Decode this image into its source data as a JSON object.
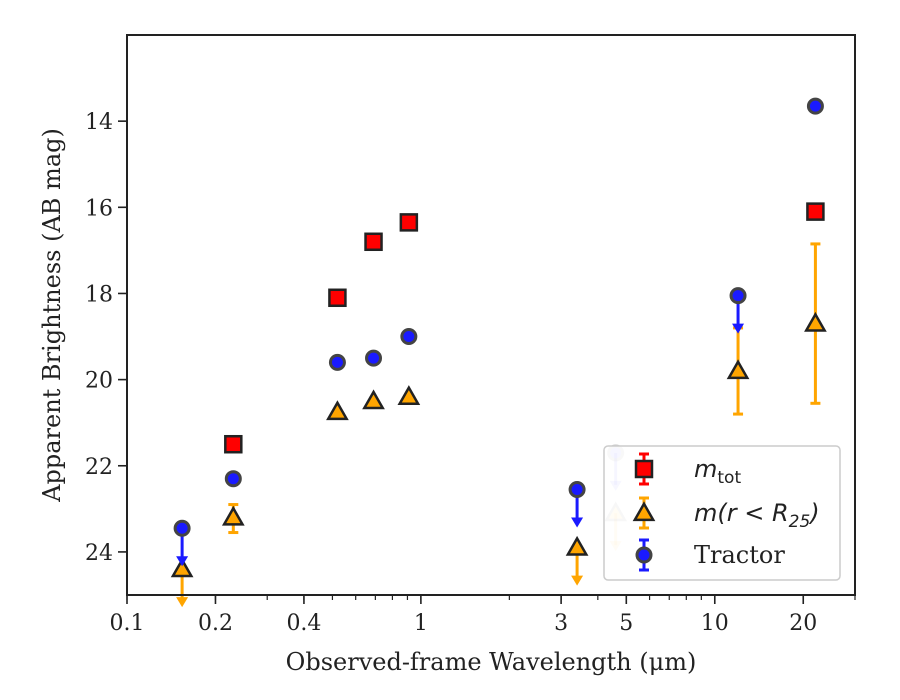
{
  "chart_data": {
    "type": "scatter",
    "title": "",
    "xlabel": "Observed-frame Wavelength (μm)",
    "ylabel": "Apparent Brightness (AB mag)",
    "xscale": "log",
    "xlim": [
      0.1,
      30
    ],
    "ylim": [
      25,
      12
    ],
    "y_inverted": true,
    "grid": false,
    "legend_position": "lower right",
    "xticks": [
      {
        "value": 0.1,
        "label": "0.1"
      },
      {
        "value": 0.2,
        "label": "0.2"
      },
      {
        "value": 0.4,
        "label": "0.4"
      },
      {
        "value": 1,
        "label": "1"
      },
      {
        "value": 3,
        "label": "3"
      },
      {
        "value": 5,
        "label": "5"
      },
      {
        "value": 10,
        "label": "10"
      },
      {
        "value": 20,
        "label": "20"
      }
    ],
    "yticks": [
      {
        "value": 14,
        "label": "14"
      },
      {
        "value": 16,
        "label": "16"
      },
      {
        "value": 18,
        "label": "18"
      },
      {
        "value": 20,
        "label": "20"
      },
      {
        "value": 22,
        "label": "22"
      },
      {
        "value": 24,
        "label": "24"
      }
    ],
    "series": [
      {
        "name": "m_tot",
        "legend_label": {
          "base": "m",
          "sub": "tot"
        },
        "marker": "square",
        "color": "#ff0000",
        "edge_color": "#222222",
        "points": [
          {
            "x": 0.23,
            "y": 21.5
          },
          {
            "x": 0.52,
            "y": 18.1
          },
          {
            "x": 0.69,
            "y": 16.8
          },
          {
            "x": 0.91,
            "y": 16.35
          },
          {
            "x": 22.0,
            "y": 16.1
          }
        ]
      },
      {
        "name": "m(r < R25)",
        "legend_label": {
          "base": "m(r < R",
          "sub": "25",
          "close": ")"
        },
        "marker": "triangle",
        "color": "#ffa500",
        "edge_color": "#222222",
        "points": [
          {
            "x": 0.154,
            "y": 24.4,
            "upper_limit": true
          },
          {
            "x": 0.23,
            "y": 23.2,
            "err_low": 22.9,
            "err_high": 23.55
          },
          {
            "x": 0.52,
            "y": 20.75
          },
          {
            "x": 0.69,
            "y": 20.5
          },
          {
            "x": 0.91,
            "y": 20.4
          },
          {
            "x": 3.4,
            "y": 23.9,
            "upper_limit": true
          },
          {
            "x": 4.6,
            "y": 23.1,
            "upper_limit": true
          },
          {
            "x": 12.0,
            "y": 19.8,
            "err_low": 18.8,
            "err_high": 20.8
          },
          {
            "x": 22.0,
            "y": 18.7,
            "err_low": 16.85,
            "err_high": 20.55
          }
        ]
      },
      {
        "name": "Tractor",
        "legend_label": {
          "base": "Tractor"
        },
        "marker": "circle",
        "color": "#1a1aff",
        "edge_color": "#444444",
        "points": [
          {
            "x": 0.154,
            "y": 23.45,
            "upper_limit": true
          },
          {
            "x": 0.23,
            "y": 22.3
          },
          {
            "x": 0.52,
            "y": 19.6
          },
          {
            "x": 0.69,
            "y": 19.5
          },
          {
            "x": 0.91,
            "y": 19.0
          },
          {
            "x": 3.4,
            "y": 22.55,
            "upper_limit": true
          },
          {
            "x": 4.6,
            "y": 21.7,
            "upper_limit": true
          },
          {
            "x": 12.0,
            "y": 18.05,
            "upper_limit": true
          },
          {
            "x": 22.0,
            "y": 13.65
          }
        ]
      }
    ]
  }
}
